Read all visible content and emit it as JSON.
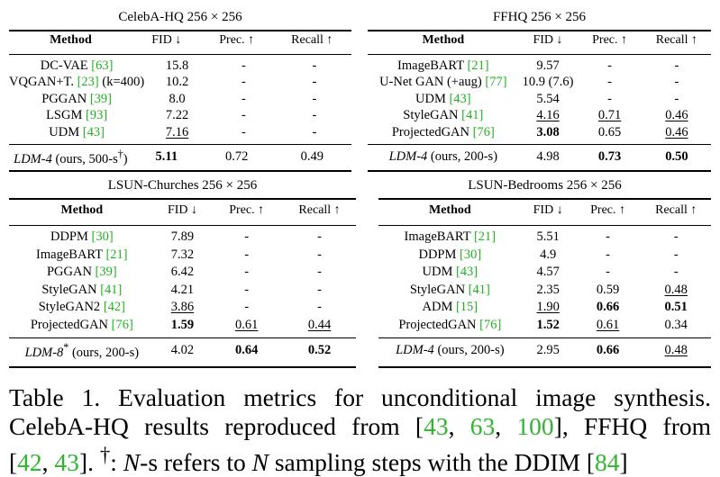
{
  "panels": [
    {
      "id": "celeba",
      "title": "CelebA-HQ 256 × 256",
      "headers": [
        "Method",
        "FID ↓",
        "Prec. ↑",
        "Recall ↑"
      ],
      "rows": [
        [
          {
            "t": "DC-VAE ",
            "cite": "[63]"
          },
          {
            "t": "15.8"
          },
          {
            "t": "-"
          },
          {
            "t": "-"
          }
        ],
        [
          {
            "t": "VQGAN+T. ",
            "cite": "[23]",
            "post": " (k=400)"
          },
          {
            "t": "10.2"
          },
          {
            "t": "-"
          },
          {
            "t": "-"
          }
        ],
        [
          {
            "t": "PGGAN ",
            "cite": "[39]"
          },
          {
            "t": "8.0"
          },
          {
            "t": "-"
          },
          {
            "t": "-"
          }
        ],
        [
          {
            "t": "LSGM ",
            "cite": "[93]"
          },
          {
            "t": "7.22"
          },
          {
            "t": "-"
          },
          {
            "t": "-"
          }
        ],
        [
          {
            "t": "UDM ",
            "cite": "[43]"
          },
          {
            "t": "7.16",
            "u": true
          },
          {
            "t": "-"
          },
          {
            "t": "-"
          }
        ]
      ],
      "ours": [
        {
          "it": "LDM-4",
          "t": " (ours, 500-s",
          "sup": "†",
          "post": ")"
        },
        {
          "t": "5.11",
          "b": true
        },
        {
          "t": "0.72"
        },
        {
          "t": "0.49"
        }
      ]
    },
    {
      "id": "ffhq",
      "title": "FFHQ 256 × 256",
      "headers": [
        "Method",
        "FID ↓",
        "Prec. ↑",
        "Recall ↑"
      ],
      "rows": [
        [
          {
            "t": "ImageBART ",
            "cite": "[21]"
          },
          {
            "t": "9.57"
          },
          {
            "t": "-"
          },
          {
            "t": "-"
          }
        ],
        [
          {
            "t": "U-Net GAN (+aug) ",
            "cite": "[77]"
          },
          {
            "t": "10.9 (7.6)"
          },
          {
            "t": "-"
          },
          {
            "t": "-"
          }
        ],
        [
          {
            "t": "UDM ",
            "cite": "[43]"
          },
          {
            "t": "5.54"
          },
          {
            "t": "-"
          },
          {
            "t": "-"
          }
        ],
        [
          {
            "t": "StyleGAN ",
            "cite": "[41]"
          },
          {
            "t": "4.16",
            "u": true
          },
          {
            "t": "0.71",
            "u": true
          },
          {
            "t": "0.46",
            "u": true
          }
        ],
        [
          {
            "t": "ProjectedGAN ",
            "cite": "[76]"
          },
          {
            "t": "3.08",
            "b": true
          },
          {
            "t": "0.65"
          },
          {
            "t": "0.46",
            "u": true
          }
        ]
      ],
      "ours": [
        {
          "it": "LDM-4",
          "t": " (ours, 200-s)"
        },
        {
          "t": "4.98"
        },
        {
          "t": "0.73",
          "b": true
        },
        {
          "t": "0.50",
          "b": true
        }
      ]
    },
    {
      "id": "churches",
      "title": "LSUN-Churches 256 × 256",
      "headers": [
        "Method",
        "FID ↓",
        "Prec. ↑",
        "Recall ↑"
      ],
      "rows": [
        [
          {
            "t": "DDPM ",
            "cite": "[30]"
          },
          {
            "t": "7.89"
          },
          {
            "t": "-"
          },
          {
            "t": "-"
          }
        ],
        [
          {
            "t": "ImageBART ",
            "cite": "[21]"
          },
          {
            "t": "7.32"
          },
          {
            "t": "-"
          },
          {
            "t": "-"
          }
        ],
        [
          {
            "t": "PGGAN ",
            "cite": "[39]"
          },
          {
            "t": "6.42"
          },
          {
            "t": "-"
          },
          {
            "t": "-"
          }
        ],
        [
          {
            "t": "StyleGAN ",
            "cite": "[41]"
          },
          {
            "t": "4.21"
          },
          {
            "t": "-"
          },
          {
            "t": "-"
          }
        ],
        [
          {
            "t": "StyleGAN2 ",
            "cite": "[42]"
          },
          {
            "t": "3.86",
            "u": true
          },
          {
            "t": "-"
          },
          {
            "t": "-"
          }
        ],
        [
          {
            "t": "ProjectedGAN ",
            "cite": "[76]"
          },
          {
            "t": "1.59",
            "b": true
          },
          {
            "t": "0.61",
            "u": true
          },
          {
            "t": "0.44",
            "u": true
          }
        ]
      ],
      "ours": [
        {
          "it": "LDM-8",
          "sup": "*",
          "t": " (ours, 200-s)"
        },
        {
          "t": "4.02"
        },
        {
          "t": "0.64",
          "b": true
        },
        {
          "t": "0.52",
          "b": true
        }
      ]
    },
    {
      "id": "bedrooms",
      "title": "LSUN-Bedrooms 256 × 256",
      "headers": [
        "Method",
        "FID ↓",
        "Prec. ↑",
        "Recall ↑"
      ],
      "rows": [
        [
          {
            "t": "ImageBART ",
            "cite": "[21]"
          },
          {
            "t": "5.51"
          },
          {
            "t": "-"
          },
          {
            "t": "-"
          }
        ],
        [
          {
            "t": "DDPM ",
            "cite": "[30]"
          },
          {
            "t": "4.9"
          },
          {
            "t": "-"
          },
          {
            "t": "-"
          }
        ],
        [
          {
            "t": "UDM ",
            "cite": "[43]"
          },
          {
            "t": "4.57"
          },
          {
            "t": "-"
          },
          {
            "t": "-"
          }
        ],
        [
          {
            "t": "StyleGAN ",
            "cite": "[41]"
          },
          {
            "t": "2.35"
          },
          {
            "t": "0.59"
          },
          {
            "t": "0.48",
            "u": true
          }
        ],
        [
          {
            "t": "ADM ",
            "cite": "[15]"
          },
          {
            "t": "1.90",
            "u": true
          },
          {
            "t": "0.66",
            "b": true
          },
          {
            "t": "0.51",
            "b": true
          }
        ],
        [
          {
            "t": "ProjectedGAN ",
            "cite": "[76]"
          },
          {
            "t": "1.52",
            "b": true
          },
          {
            "t": "0.61",
            "u": true
          },
          {
            "t": "0.34"
          }
        ]
      ],
      "ours": [
        {
          "it": "LDM-4",
          "t": " (ours, 200-s)"
        },
        {
          "t": "2.95"
        },
        {
          "t": "0.66",
          "b": true
        },
        {
          "t": "0.48",
          "u": true
        }
      ]
    }
  ],
  "caption": {
    "label": "Table 1.",
    "line1": "Evaluation metrics for unconditional image synthesis.",
    "line2_a": "CelebA-HQ results reproduced from [",
    "line2_c1": "43",
    "line2_sep1": ", ",
    "line2_c2": "63",
    "line2_sep2": ", ",
    "line2_c3": "100",
    "line2_b": "], FFHQ from",
    "line3_a": "[",
    "line3_c1": "42",
    "line3_sep": ", ",
    "line3_c2": "43",
    "line3_b": "].  ",
    "line3_dag": "†",
    "line3_c": ":  ",
    "line3_N1": "N",
    "line3_d": "-s refers to ",
    "line3_N2": "N",
    "line3_e": " sampling steps with the DDIM [",
    "line3_c3": "84",
    "line3_f": "]"
  }
}
